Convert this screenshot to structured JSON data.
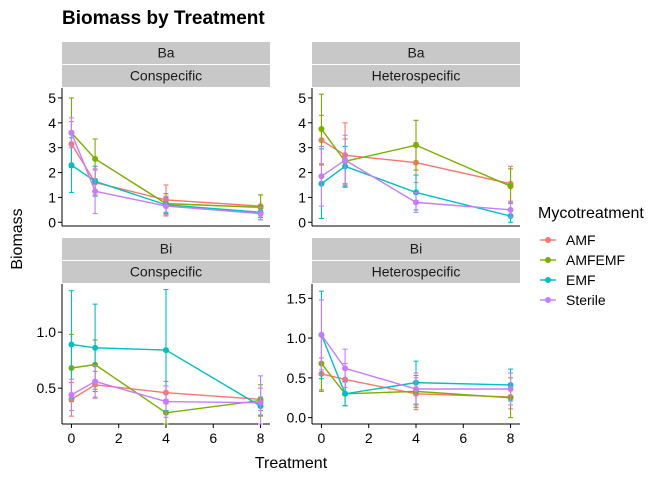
{
  "chart_data": {
    "type": "line",
    "title": "Biomass by Treatment",
    "xlabel": "Treatment",
    "ylabel": "Biomass",
    "legend": {
      "title": "Mycotreatment",
      "placement": "right",
      "entries": [
        "AMF",
        "AMFEMF",
        "EMF",
        "Sterile"
      ]
    },
    "colors": {
      "AMF": "#F8766D",
      "AMFEMF": "#7CAE00",
      "EMF": "#00BFC4",
      "Sterile": "#C77CFF"
    },
    "x_ticks": [
      0,
      2,
      4,
      6,
      8
    ],
    "x_tick_labels": [
      "0",
      "2",
      "4",
      "6",
      "8"
    ],
    "xlim": [
      -0.4,
      8.4
    ],
    "panels": [
      {
        "strip": [
          "Ba",
          "Conspecific"
        ],
        "ylim": [
          -0.15,
          5.4
        ],
        "y_ticks": [
          0,
          1,
          2,
          3,
          4,
          5
        ],
        "y_tick_labels": [
          "0",
          "1",
          "2",
          "3",
          "4",
          "5"
        ],
        "series": [
          {
            "name": "AMF",
            "x": [
              0,
              1,
              4,
              8
            ],
            "y": [
              3.15,
              1.6,
              0.9,
              0.65
            ],
            "err": [
              0.9,
              0.5,
              0.6,
              0.45
            ]
          },
          {
            "name": "AMFEMF",
            "x": [
              0,
              1,
              4,
              8
            ],
            "y": [
              3.6,
              2.55,
              0.75,
              0.6
            ],
            "err": [
              1.4,
              0.8,
              0.4,
              0.5
            ]
          },
          {
            "name": "EMF",
            "x": [
              0,
              1,
              4,
              8
            ],
            "y": [
              2.3,
              1.65,
              0.7,
              0.4
            ],
            "err": [
              1.1,
              0.6,
              0.3,
              0.2
            ]
          },
          {
            "name": "Sterile",
            "x": [
              0,
              1,
              4,
              8
            ],
            "y": [
              3.6,
              1.25,
              0.65,
              0.35
            ],
            "err": [
              0.6,
              0.9,
              0.4,
              0.25
            ]
          }
        ]
      },
      {
        "strip": [
          "Ba",
          "Heterospecific"
        ],
        "ylim": [
          -0.15,
          5.4
        ],
        "y_ticks": [
          0,
          1,
          2,
          3,
          4,
          5
        ],
        "y_tick_labels": [
          "0",
          "1",
          "2",
          "3",
          "4",
          "5"
        ],
        "series": [
          {
            "name": "AMF",
            "x": [
              0,
              1,
              4,
              8
            ],
            "y": [
              3.3,
              2.7,
              2.4,
              1.55
            ],
            "err": [
              1.0,
              1.3,
              0.8,
              0.7
            ]
          },
          {
            "name": "AMFEMF",
            "x": [
              0,
              1,
              4,
              8
            ],
            "y": [
              3.75,
              2.45,
              3.1,
              1.45
            ],
            "err": [
              1.4,
              0.9,
              1.0,
              0.7
            ]
          },
          {
            "name": "EMF",
            "x": [
              0,
              1,
              4,
              8
            ],
            "y": [
              1.55,
              2.25,
              1.2,
              0.25
            ],
            "err": [
              1.4,
              0.8,
              0.7,
              0.25
            ]
          },
          {
            "name": "Sterile",
            "x": [
              0,
              1,
              4,
              8
            ],
            "y": [
              1.85,
              2.5,
              0.8,
              0.5
            ],
            "err": [
              1.2,
              1.0,
              0.4,
              0.3
            ]
          }
        ]
      },
      {
        "strip": [
          "Bi",
          "Conspecific"
        ],
        "ylim": [
          0.18,
          1.43
        ],
        "y_ticks": [
          0.5,
          1.0
        ],
        "y_tick_labels": [
          "0.5",
          "1.0"
        ],
        "series": [
          {
            "name": "AMF",
            "x": [
              0,
              1,
              4,
              8
            ],
            "y": [
              0.4,
              0.53,
              0.46,
              0.4
            ],
            "err": [
              0.15,
              0.12,
              0.1,
              0.1
            ]
          },
          {
            "name": "AMFEMF",
            "x": [
              0,
              1,
              4,
              8
            ],
            "y": [
              0.68,
              0.71,
              0.28,
              0.39
            ],
            "err": [
              0.3,
              0.22,
              0.12,
              0.14
            ]
          },
          {
            "name": "EMF",
            "x": [
              0,
              1,
              4,
              8
            ],
            "y": [
              0.89,
              0.86,
              0.84,
              0.34
            ],
            "err": [
              0.48,
              0.39,
              0.54,
              0.08
            ]
          },
          {
            "name": "Sterile",
            "x": [
              0,
              1,
              4,
              8
            ],
            "y": [
              0.44,
              0.56,
              0.38,
              0.37
            ],
            "err": [
              0.14,
              0.14,
              0.14,
              0.24
            ]
          }
        ]
      },
      {
        "strip": [
          "Bi",
          "Heterospecific"
        ],
        "ylim": [
          -0.08,
          1.68
        ],
        "y_ticks": [
          0.0,
          0.5,
          1.0,
          1.5
        ],
        "y_tick_labels": [
          "0.0",
          "0.5",
          "1.0",
          "1.5"
        ],
        "series": [
          {
            "name": "AMF",
            "x": [
              0,
              1,
              4,
              8
            ],
            "y": [
              0.55,
              0.48,
              0.3,
              0.26
            ],
            "err": [
              0.2,
              0.2,
              0.2,
              0.15
            ]
          },
          {
            "name": "AMFEMF",
            "x": [
              0,
              1,
              4,
              8
            ],
            "y": [
              0.68,
              0.3,
              0.33,
              0.25
            ],
            "err": [
              0.35,
              0.15,
              0.2,
              0.25
            ]
          },
          {
            "name": "EMF",
            "x": [
              0,
              1,
              4,
              8
            ],
            "y": [
              1.04,
              0.3,
              0.44,
              0.41
            ],
            "err": [
              0.55,
              0.15,
              0.27,
              0.2
            ]
          },
          {
            "name": "Sterile",
            "x": [
              0,
              1,
              4,
              8
            ],
            "y": [
              1.04,
              0.62,
              0.36,
              0.36
            ],
            "err": [
              0.44,
              0.24,
              0.2,
              0.2
            ]
          }
        ]
      }
    ]
  }
}
